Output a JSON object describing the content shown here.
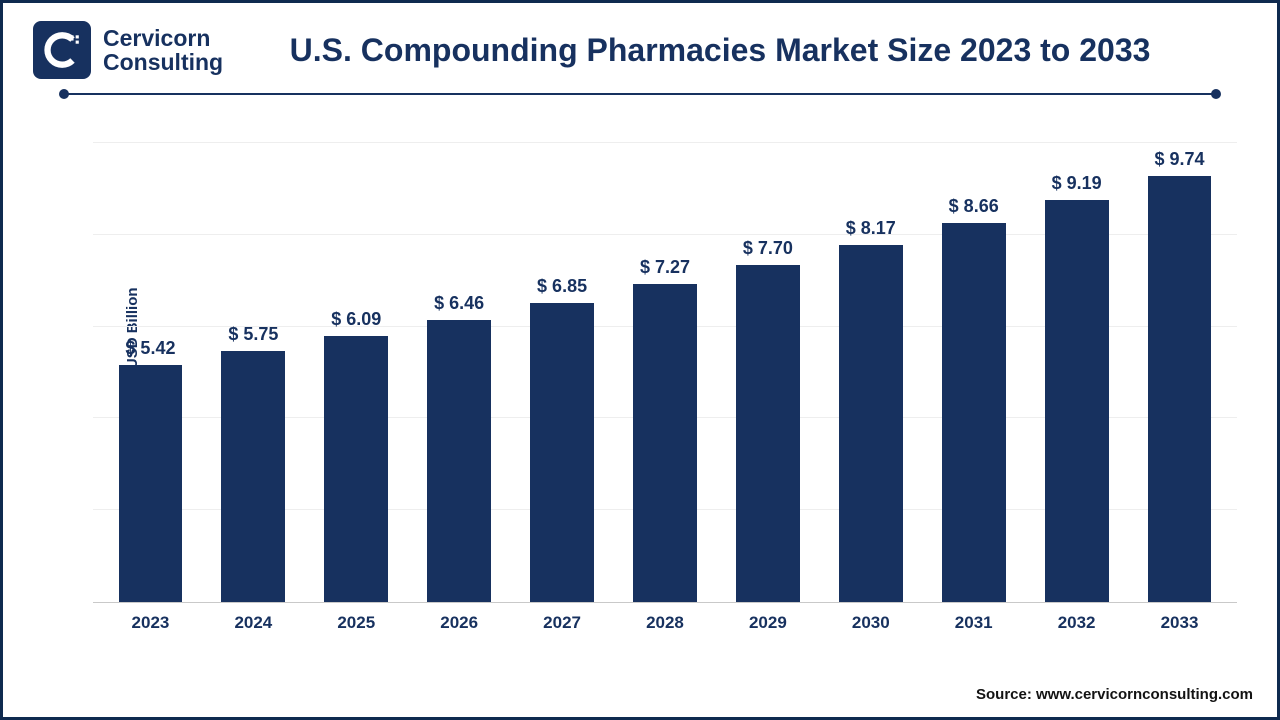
{
  "logo": {
    "line1": "Cervicorn",
    "line2": "Consulting",
    "mark_bg": "#17315f"
  },
  "title": "U.S. Compounding Pharmacies Market Size 2023 to 2033",
  "rule_color": "#17315f",
  "chart": {
    "type": "bar",
    "ylabel": "Market Value in USD Billion",
    "categories": [
      "2023",
      "2024",
      "2025",
      "2026",
      "2027",
      "2028",
      "2029",
      "2030",
      "2031",
      "2032",
      "2033"
    ],
    "values": [
      5.42,
      5.75,
      6.09,
      6.46,
      6.85,
      7.27,
      7.7,
      8.17,
      8.66,
      9.19,
      9.74
    ],
    "value_prefix": "$ ",
    "bar_color": "#17315f",
    "background_color": "#ffffff",
    "grid_color": "#eeeeee",
    "axis_line_color": "#c9c9c9",
    "bar_width_ratio": 0.62,
    "ylim": [
      0,
      10.5
    ],
    "n_gridlines": 5,
    "label_fontsize": 18,
    "category_fontsize": 17,
    "ylabel_fontsize": 15,
    "title_fontsize": 32,
    "text_color": "#17315f"
  },
  "source": "Source: www.cervicornconsulting.com",
  "frame_border_color": "#0f2a4f"
}
